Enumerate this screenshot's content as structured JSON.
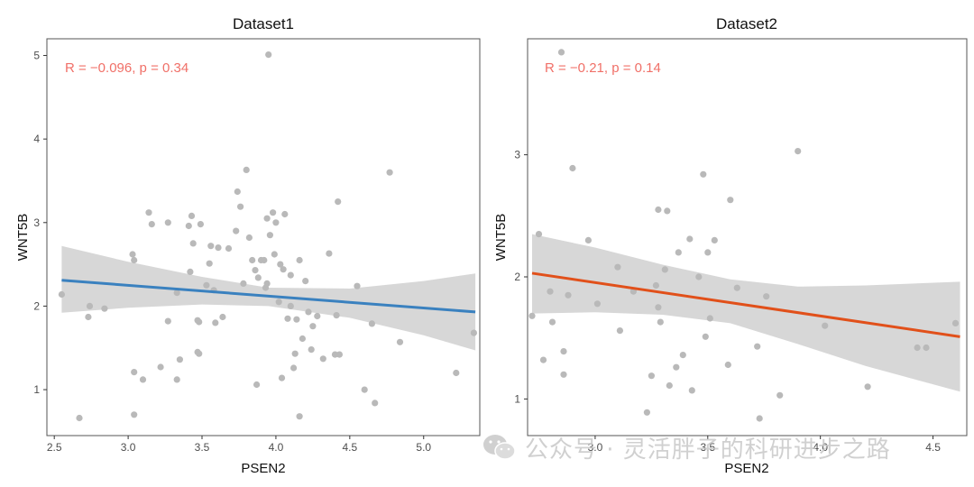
{
  "chart_data": [
    {
      "type": "scatter",
      "title": "Dataset1",
      "xlabel": "PSEN2",
      "ylabel": "WNT5B",
      "xlim": [
        2.45,
        5.38
      ],
      "ylim": [
        0.45,
        5.2
      ],
      "xticks": [
        2.5,
        3.0,
        3.5,
        4.0,
        4.5,
        5.0
      ],
      "xtick_labels": [
        "2.5",
        "3.0",
        "3.5",
        "4.0",
        "4.5",
        "5.0"
      ],
      "yticks": [
        1,
        2,
        3,
        4,
        5
      ],
      "ytick_labels": [
        "1",
        "2",
        "3",
        "4",
        "5"
      ],
      "annotation": "R = −0.096,  p = 0.34",
      "line_color": "#3a81bf",
      "fit": {
        "x": [
          2.55,
          5.35
        ],
        "y": [
          2.31,
          1.93
        ]
      },
      "band": {
        "x": [
          2.55,
          3.0,
          3.5,
          3.95,
          4.5,
          5.0,
          5.35
        ],
        "upper": [
          2.72,
          2.53,
          2.35,
          2.22,
          2.21,
          2.3,
          2.39
        ],
        "lower": [
          1.92,
          1.98,
          2.02,
          2.0,
          1.86,
          1.65,
          1.47
        ]
      },
      "points": {
        "x": [
          2.55,
          2.67,
          2.73,
          2.74,
          2.84,
          3.03,
          3.04,
          3.04,
          3.04,
          3.1,
          3.14,
          3.16,
          3.22,
          3.27,
          3.27,
          3.33,
          3.33,
          3.35,
          3.41,
          3.42,
          3.43,
          3.44,
          3.47,
          3.47,
          3.48,
          3.48,
          3.49,
          3.53,
          3.55,
          3.56,
          3.58,
          3.59,
          3.61,
          3.64,
          3.68,
          3.73,
          3.74,
          3.76,
          3.78,
          3.8,
          3.82,
          3.84,
          3.86,
          3.87,
          3.88,
          3.9,
          3.92,
          3.93,
          3.94,
          3.94,
          3.95,
          3.96,
          3.98,
          3.99,
          4.0,
          4.02,
          4.03,
          4.04,
          4.05,
          4.06,
          4.08,
          4.1,
          4.1,
          4.12,
          4.13,
          4.14,
          4.16,
          4.16,
          4.18,
          4.2,
          4.22,
          4.24,
          4.25,
          4.28,
          4.32,
          4.36,
          4.4,
          4.41,
          4.42,
          4.43,
          4.55,
          4.6,
          4.65,
          4.67,
          4.77,
          4.84,
          5.22,
          5.34
        ],
        "y": [
          2.14,
          0.66,
          1.87,
          2.0,
          1.97,
          2.62,
          2.55,
          1.21,
          0.7,
          1.12,
          3.12,
          2.98,
          1.27,
          3.0,
          1.82,
          1.12,
          2.16,
          1.36,
          2.96,
          2.41,
          3.08,
          2.75,
          1.45,
          1.83,
          1.43,
          1.81,
          2.98,
          2.25,
          2.51,
          2.72,
          2.19,
          1.8,
          2.7,
          1.87,
          2.69,
          2.9,
          3.37,
          3.19,
          2.27,
          3.63,
          2.82,
          2.55,
          2.43,
          1.06,
          2.34,
          2.55,
          2.55,
          2.22,
          3.05,
          2.27,
          5.01,
          2.85,
          3.12,
          2.62,
          3.0,
          2.05,
          2.5,
          1.14,
          2.44,
          3.1,
          1.85,
          2.37,
          2.0,
          1.26,
          1.43,
          1.84,
          2.55,
          0.68,
          1.61,
          2.3,
          1.93,
          1.48,
          1.76,
          1.88,
          1.37,
          2.63,
          1.42,
          1.89,
          3.25,
          1.42,
          2.24,
          1.0,
          1.79,
          0.84,
          3.6,
          1.57,
          1.2,
          1.68
        ]
      }
    },
    {
      "type": "scatter",
      "title": "Dataset2",
      "xlabel": "PSEN2",
      "ylabel": "WNT5B",
      "xlim": [
        2.7,
        4.65
      ],
      "ylim": [
        0.7,
        3.95
      ],
      "xticks": [
        3.0,
        3.5,
        4.0,
        4.5
      ],
      "xtick_labels": [
        "3.0",
        "3.5",
        "4.0",
        "4.5"
      ],
      "yticks": [
        1,
        2,
        3
      ],
      "ytick_labels": [
        "1",
        "2",
        "3"
      ],
      "annotation": "R = −0.21,  p = 0.14",
      "line_color": "#e1501a",
      "fit": {
        "x": [
          2.72,
          4.62
        ],
        "y": [
          2.03,
          1.51
        ]
      },
      "band": {
        "x": [
          2.72,
          3.0,
          3.3,
          3.6,
          3.9,
          4.2,
          4.62
        ],
        "upper": [
          2.35,
          2.24,
          2.1,
          1.98,
          1.92,
          1.93,
          1.96
        ],
        "lower": [
          1.7,
          1.71,
          1.69,
          1.62,
          1.45,
          1.27,
          1.06
        ]
      },
      "points": {
        "x": [
          2.72,
          2.75,
          2.77,
          2.8,
          2.81,
          2.85,
          2.86,
          2.86,
          2.88,
          2.9,
          2.97,
          3.01,
          3.1,
          3.11,
          3.17,
          3.23,
          3.25,
          3.27,
          3.28,
          3.28,
          3.29,
          3.31,
          3.32,
          3.33,
          3.36,
          3.37,
          3.39,
          3.42,
          3.43,
          3.46,
          3.48,
          3.49,
          3.5,
          3.51,
          3.53,
          3.59,
          3.6,
          3.63,
          3.72,
          3.73,
          3.76,
          3.82,
          3.9,
          4.02,
          4.21,
          4.43,
          4.47,
          4.6
        ],
        "y": [
          1.68,
          2.35,
          1.32,
          1.88,
          1.63,
          3.84,
          1.39,
          1.2,
          1.85,
          2.89,
          2.3,
          1.78,
          2.08,
          1.56,
          1.88,
          0.89,
          1.19,
          1.93,
          2.55,
          1.75,
          1.63,
          2.06,
          2.54,
          1.11,
          1.26,
          2.2,
          1.36,
          2.31,
          1.07,
          2.0,
          2.84,
          1.51,
          2.2,
          1.66,
          2.3,
          1.28,
          2.63,
          1.91,
          1.43,
          0.84,
          1.84,
          1.03,
          3.03,
          1.6,
          1.1,
          1.42,
          1.42,
          1.62
        ]
      }
    }
  ],
  "watermark": {
    "icon": "wechat-icon",
    "text": "公众号 · 灵活胖子的科研进步之路"
  }
}
